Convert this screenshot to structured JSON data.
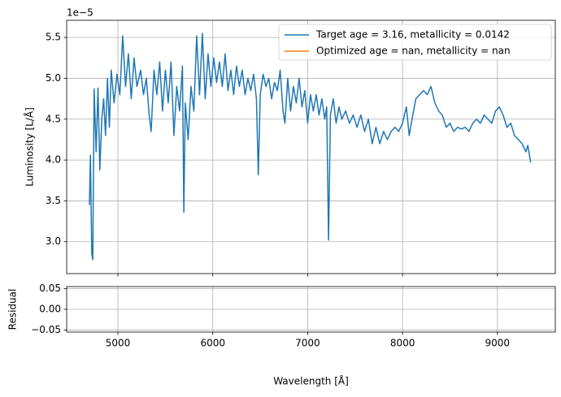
{
  "chart_data": [
    {
      "type": "line",
      "ylabel": "Luminosity [L/Å]",
      "y_offset_label": "1e−5",
      "grid": true,
      "legend": "upper right",
      "xlim": [
        4460,
        9610
      ],
      "ylim": [
        2.61,
        5.71
      ],
      "xticks": [
        5000,
        6000,
        7000,
        8000,
        9000
      ],
      "yticks": [
        {
          "value": 3,
          "label": "3.0"
        },
        3.5,
        {
          "value": 4,
          "label": "4.0"
        },
        4.5,
        {
          "value": 5,
          "label": "5.0"
        },
        5.5
      ],
      "x": [
        4700,
        4710,
        4725,
        4735,
        4750,
        4770,
        4790,
        4810,
        4830,
        4850,
        4870,
        4890,
        4910,
        4930,
        4960,
        4990,
        5020,
        5050,
        5080,
        5110,
        5140,
        5170,
        5200,
        5240,
        5270,
        5300,
        5330,
        5350,
        5380,
        5410,
        5440,
        5470,
        5500,
        5530,
        5560,
        5590,
        5620,
        5650,
        5680,
        5695,
        5710,
        5740,
        5770,
        5800,
        5830,
        5860,
        5890,
        5920,
        5950,
        5980,
        6010,
        6040,
        6070,
        6100,
        6130,
        6160,
        6190,
        6220,
        6250,
        6280,
        6310,
        6340,
        6370,
        6400,
        6430,
        6460,
        6480,
        6500,
        6530,
        6560,
        6590,
        6620,
        6650,
        6680,
        6710,
        6740,
        6760,
        6790,
        6820,
        6850,
        6880,
        6910,
        6940,
        6970,
        7000,
        7030,
        7060,
        7090,
        7120,
        7150,
        7180,
        7200,
        7220,
        7240,
        7270,
        7300,
        7330,
        7360,
        7400,
        7440,
        7480,
        7520,
        7560,
        7600,
        7640,
        7680,
        7720,
        7760,
        7800,
        7840,
        7880,
        7920,
        7960,
        8000,
        8040,
        8070,
        8100,
        8140,
        8180,
        8220,
        8260,
        8300,
        8340,
        8380,
        8420,
        8460,
        8500,
        8540,
        8580,
        8620,
        8660,
        8700,
        8740,
        8780,
        8820,
        8860,
        8900,
        8940,
        8980,
        9020,
        9060,
        9100,
        9140,
        9180,
        9220,
        9260,
        9300,
        9320,
        9350
      ],
      "series": [
        {
          "name": "Target age = 3.16, metallicity = 0.0142",
          "color": "#1f77b4",
          "values": [
            3.45,
            4.06,
            2.85,
            2.78,
            4.87,
            4.1,
            4.88,
            3.88,
            4.5,
            4.75,
            4.3,
            5.0,
            4.4,
            5.1,
            4.7,
            5.05,
            4.8,
            5.52,
            4.9,
            5.3,
            4.75,
            5.25,
            4.9,
            5.1,
            4.8,
            5.0,
            4.55,
            4.35,
            5.1,
            4.8,
            5.2,
            4.6,
            5.1,
            4.7,
            5.2,
            4.3,
            4.9,
            4.6,
            5.15,
            3.36,
            4.7,
            4.25,
            4.9,
            4.6,
            5.52,
            4.8,
            5.55,
            4.75,
            5.3,
            4.9,
            5.25,
            4.95,
            5.2,
            4.9,
            5.3,
            4.85,
            5.1,
            4.8,
            5.15,
            4.9,
            5.1,
            4.8,
            5.0,
            4.85,
            5.05,
            4.75,
            3.82,
            4.8,
            5.05,
            4.9,
            5.0,
            4.75,
            4.95,
            4.85,
            5.1,
            4.6,
            4.45,
            5.0,
            4.6,
            4.9,
            4.7,
            5.0,
            4.65,
            4.85,
            4.45,
            4.8,
            4.6,
            4.8,
            4.55,
            4.75,
            4.5,
            4.65,
            3.02,
            4.55,
            4.75,
            4.45,
            4.65,
            4.5,
            4.6,
            4.45,
            4.55,
            4.4,
            4.55,
            4.35,
            4.5,
            4.2,
            4.4,
            4.2,
            4.35,
            4.25,
            4.35,
            4.4,
            4.35,
            4.45,
            4.65,
            4.3,
            4.5,
            4.75,
            4.8,
            4.85,
            4.8,
            4.9,
            4.7,
            4.6,
            4.55,
            4.4,
            4.45,
            4.35,
            4.4,
            4.38,
            4.4,
            4.35,
            4.45,
            4.5,
            4.45,
            4.55,
            4.5,
            4.45,
            4.6,
            4.65,
            4.55,
            4.4,
            4.45,
            4.3,
            4.25,
            4.2,
            4.1,
            4.18,
            3.97
          ]
        },
        {
          "name": "Optimized age = nan, metallicity = nan",
          "color": "#ff7f0e",
          "values": [
            null,
            null,
            null,
            null,
            null,
            null,
            null,
            null,
            null,
            null,
            null,
            null,
            null,
            null,
            null,
            null,
            null,
            null,
            null,
            null,
            null,
            null,
            null,
            null,
            null,
            null,
            null,
            null,
            null,
            null,
            null,
            null,
            null,
            null,
            null,
            null,
            null,
            null,
            null,
            null,
            null,
            null,
            null,
            null,
            null,
            null,
            null,
            null,
            null,
            null,
            null,
            null,
            null,
            null,
            null,
            null,
            null,
            null,
            null,
            null,
            null,
            null,
            null,
            null,
            null,
            null,
            null,
            null,
            null,
            null,
            null,
            null,
            null,
            null,
            null,
            null,
            null,
            null,
            null,
            null,
            null,
            null,
            null,
            null,
            null,
            null,
            null,
            null,
            null,
            null,
            null,
            null,
            null,
            null,
            null,
            null,
            null,
            null,
            null,
            null,
            null,
            null,
            null,
            null,
            null,
            null,
            null,
            null,
            null,
            null,
            null,
            null,
            null,
            null,
            null,
            null,
            null,
            null,
            null,
            null,
            null,
            null,
            null,
            null,
            null,
            null,
            null,
            null,
            null,
            null,
            null,
            null,
            null,
            null,
            null,
            null,
            null,
            null,
            null,
            null,
            null,
            null,
            null,
            null,
            null,
            null,
            null,
            null,
            null
          ]
        }
      ]
    },
    {
      "type": "line",
      "xlabel": "Wavelength [Å]",
      "ylabel": "Residual",
      "grid": true,
      "xlim": [
        4460,
        9610
      ],
      "ylim": [
        -0.055,
        0.055
      ],
      "xticks": [
        5000,
        6000,
        7000,
        8000,
        9000
      ],
      "yticks": [
        {
          "value": -0.05,
          "label": "−0.05"
        },
        {
          "value": 0,
          "label": "0.00"
        },
        0.05
      ]
    }
  ]
}
